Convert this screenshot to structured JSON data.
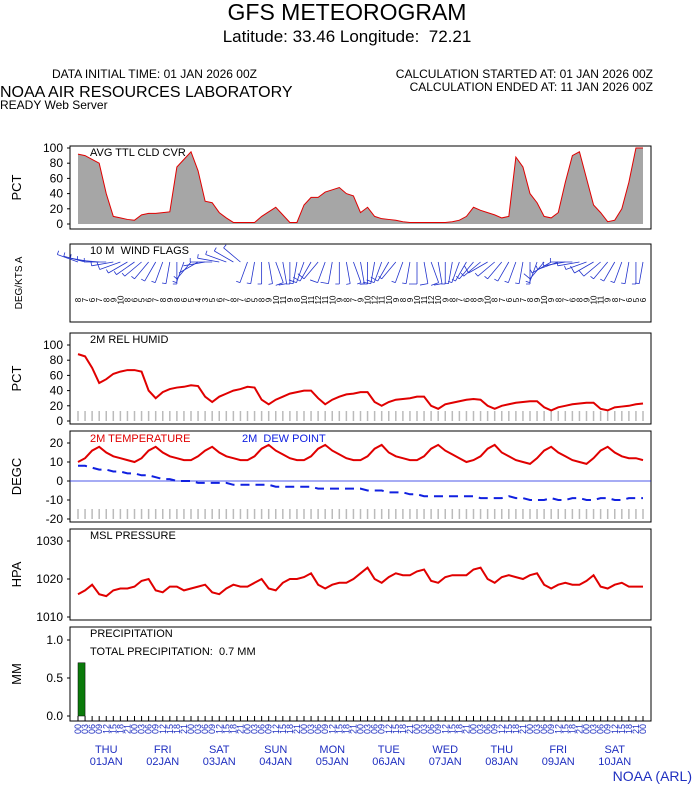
{
  "header": {
    "title": "GFS METEOROGRAM",
    "subtitle": "Latitude: 33.46 Longitude:  72.21",
    "data_time": "DATA INITIAL TIME: 01 JAN 2026 00Z",
    "calc_started": "CALCULATION STARTED AT: 01 JAN 2026 00Z",
    "calc_ended": "CALCULATION ENDED AT: 11 JAN 2026 00Z",
    "lab": "NOAA AIR RESOURCES LABORATORY",
    "server": "READY Web Server",
    "footer": "NOAA (ARL)"
  },
  "time_axis": {
    "categories": [
      "00",
      "03",
      "06",
      "09",
      "12",
      "15",
      "18",
      "21",
      "00",
      "03",
      "06",
      "09",
      "12",
      "15",
      "18",
      "21",
      "00",
      "03",
      "06",
      "09",
      "12",
      "15",
      "18",
      "21",
      "00",
      "03",
      "06",
      "09",
      "12",
      "15",
      "18",
      "21",
      "00",
      "03",
      "06",
      "09",
      "12",
      "15",
      "18",
      "21",
      "00",
      "03",
      "06",
      "09",
      "12",
      "15",
      "18",
      "21",
      "00",
      "03",
      "06",
      "09",
      "12",
      "15",
      "18",
      "21",
      "00",
      "03",
      "06",
      "09",
      "12",
      "15",
      "18",
      "21",
      "00",
      "03",
      "06",
      "09",
      "12",
      "15",
      "18",
      "21",
      "00",
      "03",
      "06",
      "09",
      "12",
      "15",
      "18",
      "21",
      "00"
    ],
    "days": [
      {
        "weekday": "THU",
        "date": "01JAN"
      },
      {
        "weekday": "FRI",
        "date": "02JAN"
      },
      {
        "weekday": "SAT",
        "date": "03JAN"
      },
      {
        "weekday": "SUN",
        "date": "04JAN"
      },
      {
        "weekday": "MON",
        "date": "05JAN"
      },
      {
        "weekday": "TUE",
        "date": "06JAN"
      },
      {
        "weekday": "WED",
        "date": "07JAN"
      },
      {
        "weekday": "THU",
        "date": "08JAN"
      },
      {
        "weekday": "FRI",
        "date": "09JAN"
      },
      {
        "weekday": "SAT",
        "date": "10JAN"
      }
    ]
  },
  "chart_data": [
    {
      "type": "area",
      "title": "AVG TTL CLD CVR",
      "y_label": "PCT",
      "ylim": [
        0,
        100
      ],
      "yticks": [
        0,
        20,
        40,
        60,
        80,
        100
      ],
      "color": "#a6a6a6",
      "line_color": "#e00000",
      "values": [
        92,
        90,
        85,
        80,
        40,
        10,
        8,
        6,
        5,
        12,
        14,
        14,
        15,
        16,
        75,
        85,
        95,
        70,
        30,
        28,
        15,
        8,
        2,
        2,
        2,
        2,
        10,
        16,
        22,
        12,
        2,
        2,
        25,
        35,
        35,
        42,
        45,
        48,
        40,
        37,
        15,
        22,
        10,
        7,
        6,
        5,
        3,
        2,
        2,
        2,
        2,
        2,
        2,
        3,
        5,
        10,
        22,
        18,
        15,
        12,
        8,
        10,
        88,
        75,
        40,
        28,
        10,
        8,
        15,
        55,
        90,
        95,
        60,
        25,
        15,
        3,
        5,
        20,
        55,
        100,
        100
      ]
    },
    {
      "type": "wind",
      "title": "10 M  WIND FLAGS",
      "y_label": "DEG/KTS A",
      "color": "#2233cc",
      "speed": [
        8,
        7,
        6,
        7,
        8,
        9,
        10,
        8,
        6,
        5,
        6,
        7,
        8,
        9,
        8,
        6,
        5,
        4,
        3,
        5,
        6,
        7,
        8,
        7,
        6,
        5,
        8,
        9,
        10,
        11,
        9,
        8,
        10,
        11,
        12,
        11,
        10,
        9,
        8,
        7,
        9,
        10,
        12,
        11,
        10,
        9,
        8,
        9,
        10,
        11,
        12,
        10,
        9,
        8,
        7,
        6,
        8,
        9,
        10,
        8,
        7,
        6,
        5,
        7,
        8,
        9,
        10,
        9,
        8,
        7,
        6,
        8,
        9,
        10,
        11,
        9,
        8,
        7,
        6,
        5,
        6
      ],
      "direction": [
        290,
        285,
        280,
        275,
        270,
        260,
        250,
        240,
        235,
        230,
        220,
        210,
        200,
        190,
        180,
        200,
        220,
        240,
        260,
        270,
        280,
        290,
        300,
        310,
        200,
        190,
        180,
        170,
        160,
        170,
        180,
        190,
        200,
        210,
        220,
        200,
        190,
        180,
        170,
        160,
        170,
        180,
        190,
        200,
        210,
        220,
        200,
        190,
        180,
        170,
        160,
        170,
        180,
        190,
        200,
        210,
        220,
        230,
        240,
        230,
        220,
        210,
        200,
        190,
        180,
        200,
        220,
        240,
        250,
        260,
        270,
        260,
        250,
        240,
        230,
        220,
        210,
        200,
        190,
        180,
        190
      ]
    },
    {
      "type": "line",
      "title": "2M REL HUMID",
      "y_label": "PCT",
      "ylim": [
        0,
        100
      ],
      "yticks": [
        0,
        20,
        40,
        60,
        80,
        100
      ],
      "hatch": true,
      "series": [
        {
          "color": "#e00000",
          "values": [
            88,
            85,
            70,
            50,
            55,
            62,
            65,
            67,
            67,
            65,
            40,
            30,
            38,
            42,
            44,
            45,
            47,
            46,
            32,
            25,
            32,
            36,
            40,
            42,
            45,
            44,
            28,
            22,
            28,
            32,
            36,
            38,
            40,
            40,
            30,
            22,
            28,
            32,
            35,
            36,
            38,
            38,
            25,
            20,
            25,
            28,
            29,
            30,
            32,
            32,
            20,
            16,
            22,
            24,
            26,
            28,
            29,
            28,
            20,
            16,
            20,
            22,
            24,
            25,
            26,
            26,
            18,
            14,
            18,
            20,
            22,
            23,
            24,
            24,
            16,
            14,
            18,
            19,
            20,
            22,
            23
          ]
        }
      ]
    },
    {
      "type": "line",
      "y_label": "DEGC",
      "ylim": [
        -20,
        20
      ],
      "yticks": [
        -20,
        -10,
        0,
        10,
        20
      ],
      "hatch": true,
      "zero_line": true,
      "legend": true,
      "series": [
        {
          "name": "2M TEMPERATURE",
          "color": "#e00000",
          "values": [
            10,
            12,
            16,
            18,
            15,
            13,
            12,
            11,
            10,
            12,
            16,
            18,
            15,
            13,
            12,
            11,
            11,
            13,
            16,
            18,
            15,
            13,
            12,
            11,
            11,
            13,
            17,
            19,
            16,
            14,
            12,
            11,
            11,
            13,
            17,
            19,
            16,
            14,
            12,
            11,
            11,
            13,
            17,
            19,
            15,
            13,
            12,
            11,
            11,
            13,
            17,
            19,
            16,
            14,
            12,
            10,
            11,
            13,
            17,
            19,
            15,
            13,
            11,
            10,
            9,
            12,
            16,
            18,
            15,
            13,
            11,
            10,
            9,
            12,
            16,
            18,
            15,
            13,
            12,
            12,
            11
          ]
        },
        {
          "name": "2M  DEW POINT",
          "color": "#1020e0",
          "dash": true,
          "values": [
            8,
            8,
            7,
            6,
            6,
            5,
            5,
            4,
            4,
            3,
            3,
            2,
            1,
            1,
            0,
            0,
            0,
            -1,
            -1,
            -1,
            -1,
            -1,
            -2,
            -2,
            -2,
            -2,
            -2,
            -2,
            -3,
            -3,
            -3,
            -3,
            -3,
            -3,
            -4,
            -4,
            -4,
            -4,
            -4,
            -4,
            -4,
            -5,
            -5,
            -5,
            -6,
            -6,
            -6,
            -7,
            -7,
            -8,
            -8,
            -8,
            -8,
            -8,
            -8,
            -8,
            -8,
            -9,
            -9,
            -9,
            -9,
            -8,
            -9,
            -9,
            -10,
            -10,
            -10,
            -9,
            -10,
            -10,
            -9,
            -9,
            -10,
            -10,
            -9,
            -9,
            -10,
            -10,
            -9,
            -9,
            -9
          ]
        }
      ]
    },
    {
      "type": "line",
      "title": "MSL PRESSURE",
      "y_label": "HPA",
      "ylim": [
        1010,
        1030
      ],
      "yticks": [
        1010,
        1020,
        1030
      ],
      "series": [
        {
          "color": "#e00000",
          "values": [
            1016,
            1017,
            1018.5,
            1016,
            1015.5,
            1017,
            1017.5,
            1017.5,
            1018,
            1019.5,
            1020,
            1017,
            1016.5,
            1018,
            1018,
            1017,
            1017.5,
            1018,
            1018.5,
            1016.5,
            1016,
            1017.5,
            1018.5,
            1018,
            1018,
            1019,
            1020,
            1017.5,
            1017,
            1019,
            1020,
            1020,
            1020.5,
            1021.5,
            1018.5,
            1017.5,
            1018.5,
            1019,
            1019,
            1020,
            1021.5,
            1023,
            1020,
            1019,
            1020.5,
            1021.5,
            1021,
            1021,
            1022,
            1022.5,
            1019.5,
            1019,
            1020.5,
            1021,
            1021,
            1021,
            1022.5,
            1023,
            1020,
            1019,
            1020.5,
            1021,
            1020.5,
            1020,
            1021,
            1021.5,
            1018.5,
            1017.5,
            1018.5,
            1019,
            1018.5,
            1018.5,
            1019.5,
            1021,
            1018,
            1017.5,
            1018.5,
            1019,
            1018,
            1018,
            1018
          ]
        }
      ]
    },
    {
      "type": "bar",
      "title": "PRECIPITATION",
      "annotation": "TOTAL PRECIPITATION:  0.7 MM",
      "y_label": "MM",
      "ylim": [
        0,
        1
      ],
      "yticks": [
        {
          "value": 0,
          "label": "0.0"
        },
        {
          "value": 0.5,
          "label": "0.5"
        },
        {
          "value": 1,
          "label": "1.0"
        }
      ],
      "color": "#0a7a0a",
      "values": [
        0.7,
        0,
        0,
        0,
        0,
        0,
        0,
        0,
        0,
        0,
        0,
        0,
        0,
        0,
        0,
        0,
        0,
        0,
        0,
        0,
        0,
        0,
        0,
        0,
        0,
        0,
        0,
        0,
        0,
        0,
        0,
        0,
        0,
        0,
        0,
        0,
        0,
        0,
        0,
        0,
        0,
        0,
        0,
        0,
        0,
        0,
        0,
        0,
        0,
        0,
        0,
        0,
        0,
        0,
        0,
        0,
        0,
        0,
        0,
        0,
        0,
        0,
        0,
        0,
        0,
        0,
        0,
        0,
        0,
        0,
        0,
        0,
        0,
        0,
        0,
        0,
        0,
        0,
        0,
        0,
        0
      ]
    }
  ]
}
